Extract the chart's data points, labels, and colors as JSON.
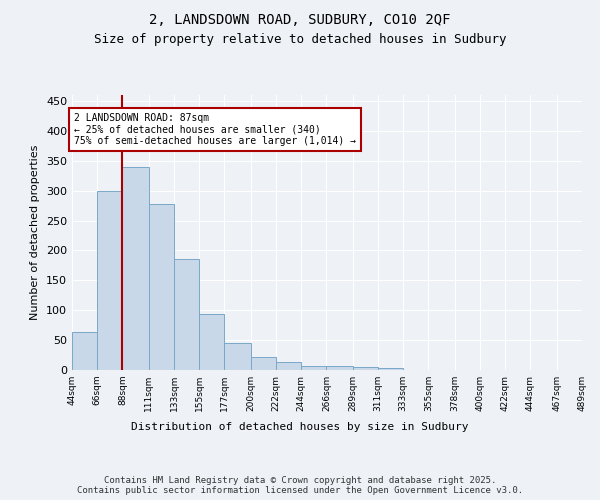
{
  "title1": "2, LANDSDOWN ROAD, SUDBURY, CO10 2QF",
  "title2": "Size of property relative to detached houses in Sudbury",
  "xlabel": "Distribution of detached houses by size in Sudbury",
  "ylabel": "Number of detached properties",
  "bar_edges": [
    44,
    66,
    88,
    111,
    133,
    155,
    177,
    200,
    222,
    244,
    266,
    289,
    311,
    333,
    355,
    378,
    400,
    422,
    444,
    467,
    489
  ],
  "bar_heights": [
    63,
    300,
    340,
    278,
    185,
    93,
    45,
    22,
    13,
    7,
    6,
    5,
    3,
    0,
    0,
    0,
    0,
    0,
    0,
    0
  ],
  "bar_color": "#c8d8e8",
  "bar_edge_color": "#7aa8c8",
  "vline_x": 88,
  "vline_color": "#aa0000",
  "annotation_text": "2 LANDSDOWN ROAD: 87sqm\n← 25% of detached houses are smaller (340)\n75% of semi-detached houses are larger (1,014) →",
  "annotation_box_color": "#aa0000",
  "annotation_box_fill": "#ffffff",
  "ylim": [
    0,
    460
  ],
  "yticks": [
    0,
    50,
    100,
    150,
    200,
    250,
    300,
    350,
    400,
    450
  ],
  "tick_labels": [
    "44sqm",
    "66sqm",
    "88sqm",
    "111sqm",
    "133sqm",
    "155sqm",
    "177sqm",
    "200sqm",
    "222sqm",
    "244sqm",
    "266sqm",
    "289sqm",
    "311sqm",
    "333sqm",
    "355sqm",
    "378sqm",
    "400sqm",
    "422sqm",
    "444sqm",
    "467sqm",
    "489sqm"
  ],
  "footer_text": "Contains HM Land Registry data © Crown copyright and database right 2025.\nContains public sector information licensed under the Open Government Licence v3.0.",
  "bg_color": "#eef2f7",
  "grid_color": "#ffffff",
  "title_fontsize": 10,
  "subtitle_fontsize": 9,
  "axis_fontsize": 8,
  "tick_fontsize": 6.5,
  "footer_fontsize": 6.5
}
